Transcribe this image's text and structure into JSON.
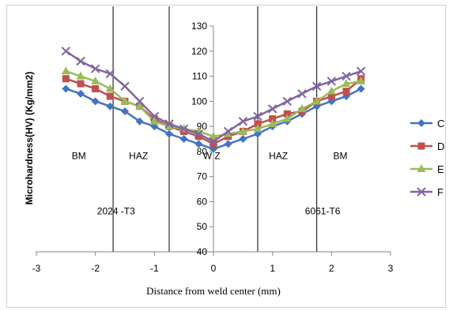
{
  "chart_data": {
    "type": "line",
    "title": "",
    "xlabel": "Distance from weld center (mm)",
    "ylabel": "Microhardness(HV) (Kg/mm2)",
    "xlim": [
      -3,
      3
    ],
    "ylim": [
      40,
      130
    ],
    "x_ticks": [
      -3,
      -2,
      -1,
      0,
      1,
      2,
      3
    ],
    "y_ticks": [
      40,
      50,
      60,
      70,
      80,
      90,
      100,
      110,
      120,
      130
    ],
    "legend_position": "right",
    "grid": false,
    "x": [
      -2.5,
      -2.25,
      -2.0,
      -1.75,
      -1.5,
      -1.25,
      -1.0,
      -0.75,
      -0.5,
      -0.25,
      0.0,
      0.25,
      0.5,
      0.75,
      1.0,
      1.25,
      1.5,
      1.75,
      2.0,
      2.25,
      2.5
    ],
    "series": [
      {
        "name": "C",
        "color": "#4472c4",
        "marker": "diamond",
        "values": [
          105,
          103,
          100,
          98,
          96,
          92,
          90,
          87,
          85,
          83,
          81,
          83,
          85,
          87,
          90,
          92,
          95,
          98,
          100,
          102,
          105
        ]
      },
      {
        "name": "D",
        "color": "#c0504d",
        "marker": "square",
        "values": [
          109,
          107,
          105,
          102,
          100,
          98,
          93,
          90,
          88,
          86,
          83,
          86,
          88,
          91,
          93,
          95,
          96,
          100,
          102,
          104,
          109
        ]
      },
      {
        "name": "E",
        "color": "#9bbb59",
        "marker": "triangle",
        "values": [
          112,
          110,
          108,
          105,
          100,
          98,
          92,
          90,
          89,
          88,
          86,
          87,
          88,
          89,
          91,
          93,
          97,
          100,
          104,
          107,
          108
        ]
      },
      {
        "name": "F",
        "color": "#8064a2",
        "marker": "x",
        "values": [
          120,
          116,
          113,
          111,
          106,
          100,
          94,
          91,
          89,
          87,
          84,
          88,
          92,
          94,
          97,
          100,
          103,
          106,
          108,
          110,
          112
        ]
      }
    ],
    "vertical_lines": [
      -1.7,
      -0.75,
      0.75,
      1.75
    ],
    "annotations": [
      {
        "text": "BM",
        "x": -2.28,
        "y": 77
      },
      {
        "text": "HAZ",
        "x": -1.27,
        "y": 77
      },
      {
        "text": "W Z",
        "x": -0.03,
        "y": 77
      },
      {
        "text": "HAZ",
        "x": 1.1,
        "y": 77
      },
      {
        "text": "BM",
        "x": 2.15,
        "y": 77
      },
      {
        "text": "2024 -T3",
        "x": -1.65,
        "y": 55
      },
      {
        "text": "6061-T6",
        "x": 1.85,
        "y": 55
      }
    ]
  }
}
